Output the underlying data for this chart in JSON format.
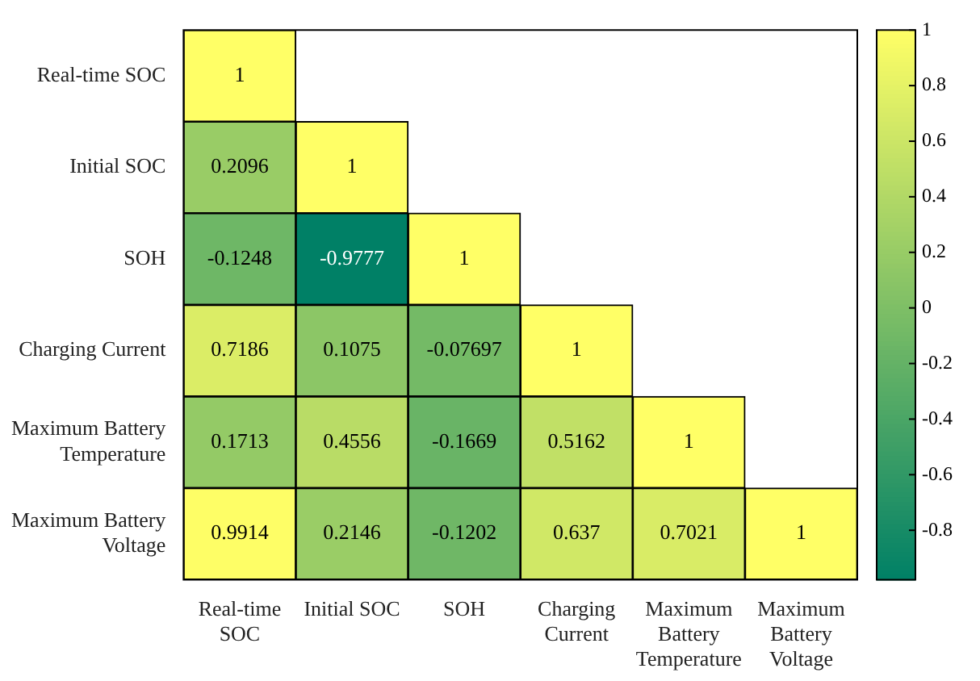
{
  "chart_data": {
    "type": "heatmap",
    "categories": [
      "Real-time SOC",
      "Initial SOC",
      "SOH",
      "Charging Current",
      "Maximum Battery Temperature",
      "Maximum Battery Voltage"
    ],
    "y_categories": [
      "Real-time SOC",
      "Initial SOC",
      "SOH",
      "Charging Current",
      "Maximum Battery Temperature",
      "Maximum Battery Voltage"
    ],
    "cells": [
      [
        1,
        null,
        null,
        null,
        null,
        null
      ],
      [
        0.2096,
        1,
        null,
        null,
        null,
        null
      ],
      [
        -0.1248,
        -0.9777,
        1,
        null,
        null,
        null
      ],
      [
        0.7186,
        0.1075,
        -0.07697,
        1,
        null,
        null
      ],
      [
        0.1713,
        0.4556,
        -0.1669,
        0.5162,
        1,
        null
      ],
      [
        0.9914,
        0.2146,
        -0.1202,
        0.637,
        0.7021,
        1
      ]
    ],
    "clim": [
      -0.9777,
      1
    ],
    "cticks": [
      -0.8,
      -0.6,
      -0.4,
      -0.2,
      0,
      0.2,
      0.4,
      0.6,
      0.8,
      1
    ],
    "data_labels": true
  }
}
